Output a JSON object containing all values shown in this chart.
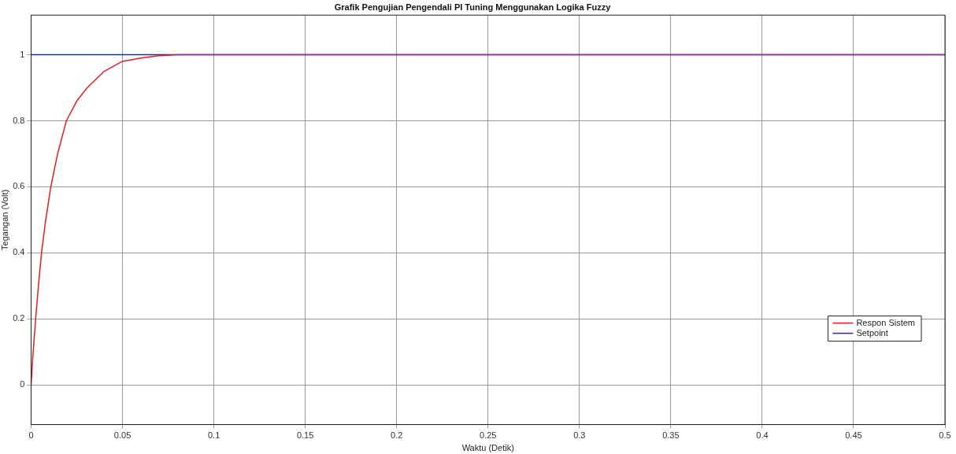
{
  "chart_data": {
    "type": "line",
    "title": "Grafik Pengujian Pengendali PI Tuning Menggunakan Logika Fuzzy",
    "xlabel": "Waktu (Detik)",
    "ylabel": "Tegangan (Volt)",
    "xlim": [
      0,
      0.5
    ],
    "xticks": [
      0,
      0.05,
      0.1,
      0.15,
      0.2,
      0.25,
      0.3,
      0.35,
      0.4,
      0.45,
      0.5
    ],
    "ylim": [
      -0.12,
      1.12
    ],
    "yticks": [
      0,
      0.2,
      0.4,
      0.6,
      0.8,
      1
    ],
    "grid": true,
    "legend": "bottom right",
    "marker": "none",
    "line_style": "solid",
    "series": [
      {
        "name": "Respon Sistem",
        "color": "#e02020",
        "x": [
          0,
          0.001,
          0.0025,
          0.004,
          0.0057,
          0.008,
          0.0108,
          0.0145,
          0.0193,
          0.025,
          0.0307,
          0.04,
          0.05,
          0.06,
          0.07,
          0.08,
          0.1,
          0.5
        ],
        "values": [
          0,
          0.09,
          0.2,
          0.3,
          0.4,
          0.5,
          0.6,
          0.7,
          0.8,
          0.86,
          0.9,
          0.95,
          0.98,
          0.99,
          0.997,
          1,
          1,
          1
        ]
      },
      {
        "name": "Setpoint",
        "color": "#2020e0",
        "x": [
          0,
          0.5
        ],
        "values": [
          1,
          1
        ]
      }
    ]
  }
}
